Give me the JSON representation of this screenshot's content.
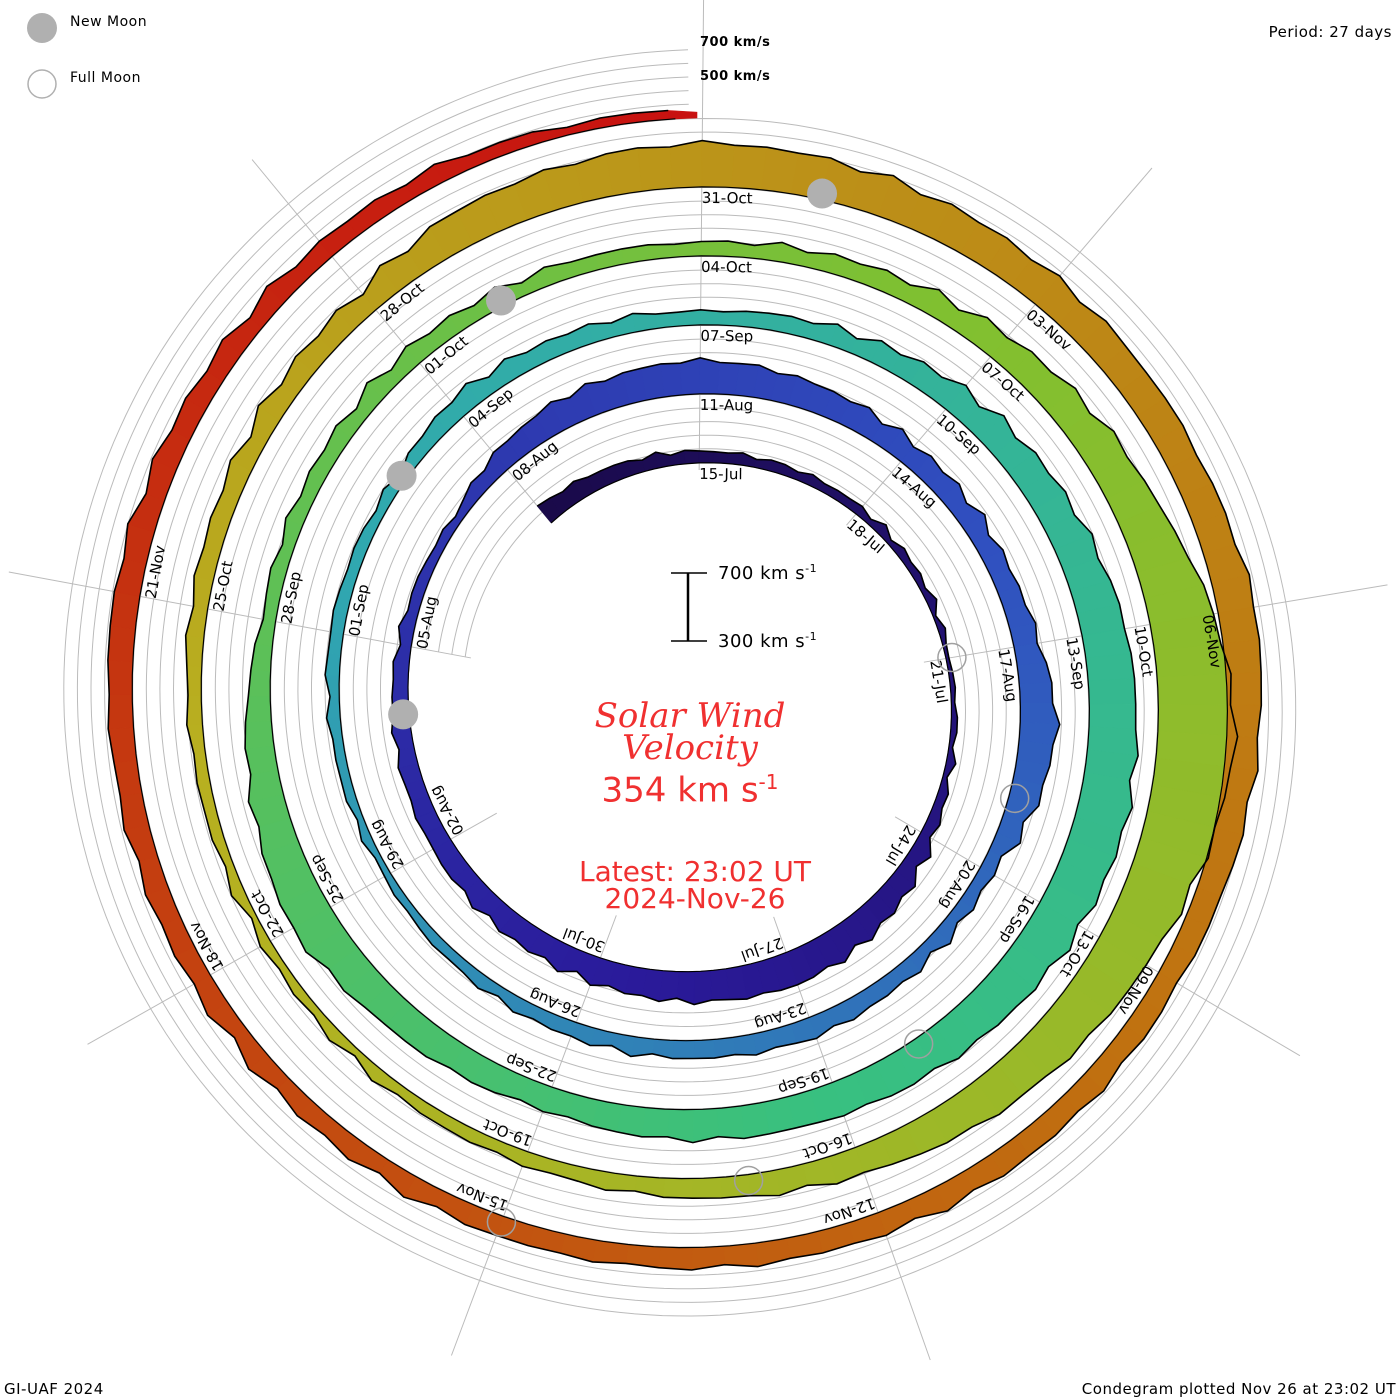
{
  "legend": {
    "new_moon": "New Moon",
    "full_moon": "Full Moon"
  },
  "period_label": "Period: 27 days",
  "footer_left": "GI-UAF 2024",
  "footer_right": "Condegram plotted Nov 26 at 23:02 UT",
  "chart_data": {
    "type": "area",
    "title": "Solar Wind Velocity",
    "current_value": "354 km s",
    "current_unit_exp": "-1",
    "latest_line": "Latest: 23:02 UT",
    "latest_date": "2024-Nov-26",
    "scale_bar": {
      "top": "700 km s",
      "bottom": "300 km s",
      "exp": "-1"
    },
    "grid_labels": [
      "700 km/s",
      "500 km/s"
    ],
    "period_days": 27,
    "start": "2024-07-12",
    "end": "2024-11-26T23:02",
    "ylabel": "km/s",
    "baseline_kms": 300,
    "series": [
      [
        "2024-07-12",
        420
      ],
      [
        "2024-07-14",
        380
      ],
      [
        "2024-07-16",
        360
      ],
      [
        "2024-07-18",
        350
      ],
      [
        "2024-07-20",
        340
      ],
      [
        "2024-07-21",
        320
      ],
      [
        "2024-07-23",
        340
      ],
      [
        "2024-07-24",
        380
      ],
      [
        "2024-07-25",
        440
      ],
      [
        "2024-07-26",
        480
      ],
      [
        "2024-07-27",
        500
      ],
      [
        "2024-07-29",
        470
      ],
      [
        "2024-07-30",
        450
      ],
      [
        "2024-08-01",
        430
      ],
      [
        "2024-08-02",
        420
      ],
      [
        "2024-08-04",
        400
      ],
      [
        "2024-08-05",
        380
      ],
      [
        "2024-08-07",
        350
      ],
      [
        "2024-08-08",
        420
      ],
      [
        "2024-08-09",
        470
      ],
      [
        "2024-08-11",
        500
      ],
      [
        "2024-08-13",
        450
      ],
      [
        "2024-08-14",
        430
      ],
      [
        "2024-08-16",
        420
      ],
      [
        "2024-08-17",
        450
      ],
      [
        "2024-08-18",
        520
      ],
      [
        "2024-08-19",
        470
      ],
      [
        "2024-08-20",
        380
      ],
      [
        "2024-08-22",
        400
      ],
      [
        "2024-08-23",
        420
      ],
      [
        "2024-08-26",
        390
      ],
      [
        "2024-08-28",
        360
      ],
      [
        "2024-08-29",
        340
      ],
      [
        "2024-09-01",
        380
      ],
      [
        "2024-09-03",
        360
      ],
      [
        "2024-09-04",
        420
      ],
      [
        "2024-09-06",
        400
      ],
      [
        "2024-09-07",
        380
      ],
      [
        "2024-09-09",
        420
      ],
      [
        "2024-09-10",
        460
      ],
      [
        "2024-09-12",
        520
      ],
      [
        "2024-09-13",
        560
      ],
      [
        "2024-09-15",
        600
      ],
      [
        "2024-09-16",
        580
      ],
      [
        "2024-09-18",
        520
      ],
      [
        "2024-09-19",
        500
      ],
      [
        "2024-09-21",
        470
      ],
      [
        "2024-09-22",
        440
      ],
      [
        "2024-09-24",
        500
      ],
      [
        "2024-09-25",
        560
      ],
      [
        "2024-09-27",
        450
      ],
      [
        "2024-09-28",
        380
      ],
      [
        "2024-09-30",
        400
      ],
      [
        "2024-10-01",
        410
      ],
      [
        "2024-10-03",
        390
      ],
      [
        "2024-10-04",
        380
      ],
      [
        "2024-10-06",
        420
      ],
      [
        "2024-10-07",
        460
      ],
      [
        "2024-10-09",
        560
      ],
      [
        "2024-10-10",
        680
      ],
      [
        "2024-10-11",
        760
      ],
      [
        "2024-10-12",
        700
      ],
      [
        "2024-10-13",
        620
      ],
      [
        "2024-10-15",
        520
      ],
      [
        "2024-10-16",
        460
      ],
      [
        "2024-10-18",
        400
      ],
      [
        "2024-10-19",
        380
      ],
      [
        "2024-10-21",
        360
      ],
      [
        "2024-10-22",
        350
      ],
      [
        "2024-10-24",
        380
      ],
      [
        "2024-10-25",
        400
      ],
      [
        "2024-10-27",
        430
      ],
      [
        "2024-10-28",
        440
      ],
      [
        "2024-10-29",
        520
      ],
      [
        "2024-10-31",
        560
      ],
      [
        "2024-11-02",
        520
      ],
      [
        "2024-11-03",
        500
      ],
      [
        "2024-11-05",
        490
      ],
      [
        "2024-11-06",
        520
      ],
      [
        "2024-11-08",
        460
      ],
      [
        "2024-11-09",
        430
      ],
      [
        "2024-11-11",
        440
      ],
      [
        "2024-11-12",
        430
      ],
      [
        "2024-11-14",
        420
      ],
      [
        "2024-11-15",
        420
      ],
      [
        "2024-11-17",
        410
      ],
      [
        "2024-11-18",
        420
      ],
      [
        "2024-11-20",
        440
      ],
      [
        "2024-11-21",
        450
      ],
      [
        "2024-11-23",
        420
      ],
      [
        "2024-11-25",
        400
      ],
      [
        "2024-11-26",
        354
      ]
    ],
    "color_stops": [
      "#1a0a4a",
      "#2a1a9a",
      "#3050c0",
      "#30a8b0",
      "#38c080",
      "#80c030",
      "#b8b020",
      "#c07010",
      "#c81010"
    ],
    "date_labels": [
      "15-Jul",
      "18-Jul",
      "21-Jul",
      "24-Jul",
      "27-Jul",
      "30-Jul",
      "02-Aug",
      "05-Aug",
      "08-Aug",
      "11-Aug",
      "14-Aug",
      "17-Aug",
      "20-Aug",
      "23-Aug",
      "26-Aug",
      "29-Aug",
      "01-Sep",
      "04-Sep",
      "07-Sep",
      "10-Sep",
      "13-Sep",
      "16-Sep",
      "19-Sep",
      "22-Sep",
      "25-Sep",
      "28-Sep",
      "01-Oct",
      "04-Oct",
      "07-Oct",
      "10-Oct",
      "13-Oct",
      "16-Oct",
      "19-Oct",
      "22-Oct",
      "25-Oct",
      "28-Oct",
      "31-Oct",
      "03-Nov",
      "06-Nov",
      "09-Nov",
      "12-Nov",
      "15-Nov",
      "18-Nov",
      "21-Nov"
    ],
    "new_moons": [
      "2024-08-04",
      "2024-09-03",
      "2024-10-02",
      "2024-11-01"
    ],
    "full_moons": [
      "2024-07-21",
      "2024-08-19",
      "2024-09-18",
      "2024-10-17",
      "2024-11-15"
    ]
  }
}
